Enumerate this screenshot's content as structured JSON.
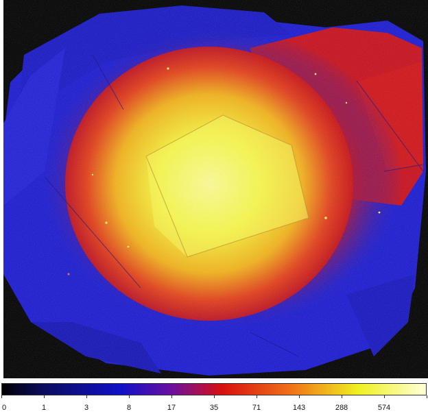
{
  "image": {
    "description_icon": "xray-intensity-map",
    "colormap": "heat",
    "colors": {
      "background": "#000000",
      "low": "#1010c8",
      "mid": "#d81010",
      "high": "#f0f020",
      "peak": "#ffffd8"
    }
  },
  "colorbar": {
    "scale": "log",
    "tick_labels": [
      "0",
      "1",
      "3",
      "8",
      "17",
      "35",
      "71",
      "143",
      "288",
      "574",
      ""
    ]
  }
}
